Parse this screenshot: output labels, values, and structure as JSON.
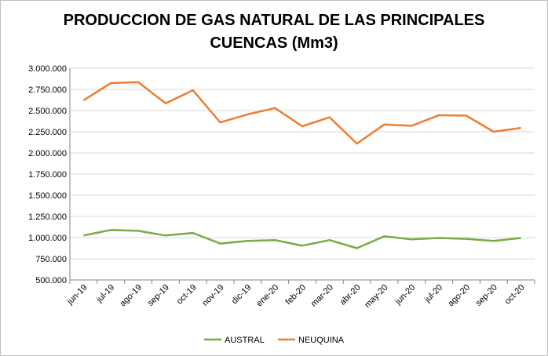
{
  "chart_data": {
    "type": "line",
    "title_lines": [
      "PRODUCCION DE GAS NATURAL DE LAS PRINCIPALES",
      "CUENCAS (Mm3)"
    ],
    "categories": [
      "jun-19",
      "jul-19",
      "ago-19",
      "sep-19",
      "oct-19",
      "nov-19",
      "dic-19",
      "ene-20",
      "feb-20",
      "mar-20",
      "abr-20",
      "may-20",
      "jun-20",
      "jul-20",
      "ago-20",
      "sep-20",
      "oct-20"
    ],
    "ylim": [
      500000,
      3000000
    ],
    "yticks": [
      500000,
      750000,
      1000000,
      1250000,
      1500000,
      1750000,
      2000000,
      2250000,
      2500000,
      2750000,
      3000000
    ],
    "ytick_labels": [
      "500.000",
      "750.000",
      "1.000.000",
      "1.250.000",
      "1.500.000",
      "1.750.000",
      "2.000.000",
      "2.250.000",
      "2.500.000",
      "2.750.000",
      "3.000.000"
    ],
    "grid": "horizontal",
    "legend": "bottom",
    "series": [
      {
        "name": "AUSTRAL",
        "color": "#77ab43",
        "values": [
          1025000,
          1090000,
          1080000,
          1025000,
          1055000,
          930000,
          960000,
          970000,
          905000,
          970000,
          875000,
          1015000,
          980000,
          995000,
          985000,
          960000,
          995000
        ]
      },
      {
        "name": "NEUQUINA",
        "color": "#ed7d31",
        "values": [
          2620000,
          2825000,
          2835000,
          2585000,
          2740000,
          2360000,
          2455000,
          2530000,
          2315000,
          2420000,
          2110000,
          2335000,
          2320000,
          2445000,
          2440000,
          2250000,
          2295000
        ]
      }
    ]
  }
}
